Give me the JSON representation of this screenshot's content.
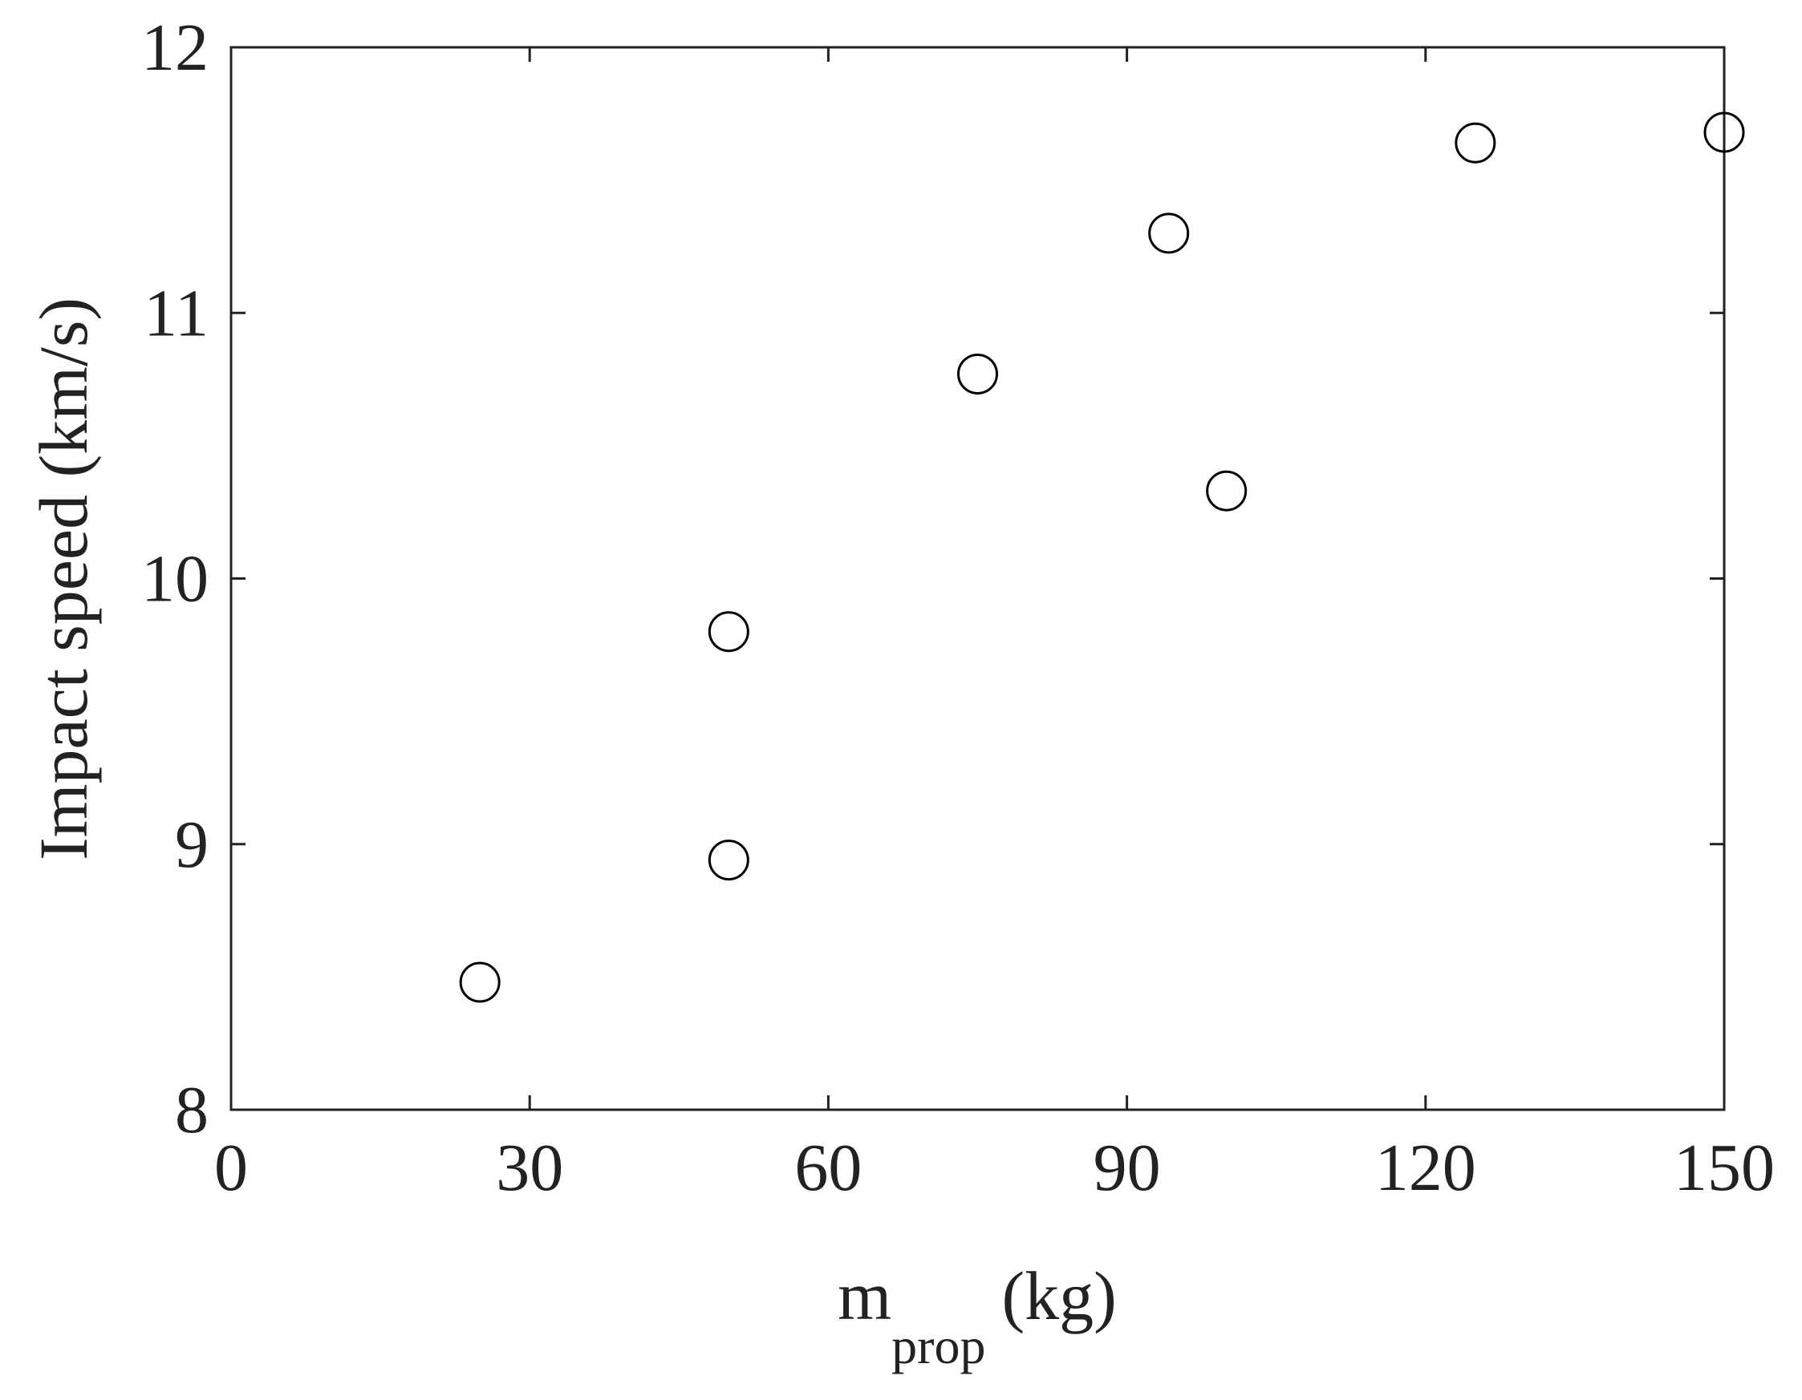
{
  "chart_data": {
    "type": "scatter",
    "xlabel": {
      "main": "m",
      "subscript": "prop",
      "unit": "(kg)"
    },
    "ylabel": "Impact speed (km/s)",
    "x": [
      25,
      50,
      50,
      75,
      94.2,
      100,
      125,
      150
    ],
    "series": [
      {
        "color": "#000000",
        "values": [
          8.48,
          9.8,
          8.94,
          10.77,
          11.3,
          10.33,
          11.64,
          11.68
        ]
      }
    ],
    "xlim": [
      0,
      150
    ],
    "xticks": [
      0,
      30,
      60,
      90,
      120,
      150
    ],
    "ylim": [
      8,
      12
    ],
    "yticks": [
      8,
      9,
      10,
      11,
      12
    ],
    "marker": "open-circle",
    "grid": false
  }
}
